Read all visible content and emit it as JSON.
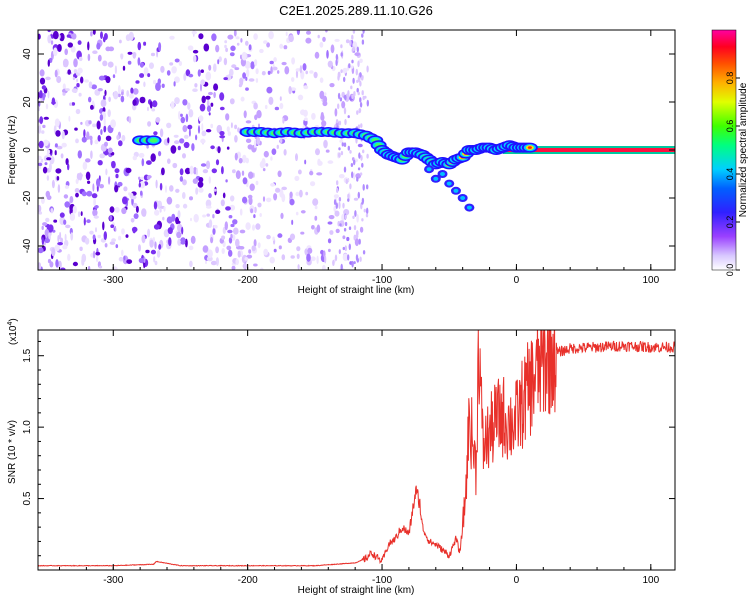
{
  "title": "C2E1.2025.289.11.10.G26",
  "chart_data": [
    {
      "type": "heatmap",
      "panel": "top",
      "title": "C2E1.2025.289.11.10.G26",
      "xlabel": "Height of straight line (km)",
      "ylabel": "Frequency (Hz)",
      "xlim": [
        -356,
        118
      ],
      "ylim": [
        -50,
        50
      ],
      "xticks": [
        -300,
        -200,
        -100,
        0,
        100
      ],
      "xtick_labels": [
        "-300",
        "-200",
        "-100",
        "0",
        "100"
      ],
      "yticks": [
        -40,
        -20,
        0,
        20,
        40
      ],
      "ytick_labels": [
        "-40",
        "-20",
        "0",
        "20",
        "40"
      ],
      "colorbar": {
        "label": "Normalized spectral amplitude",
        "range": [
          0,
          1
        ],
        "ticks": [
          0.0,
          0.2,
          0.4,
          0.6,
          0.8
        ],
        "tick_labels": [
          "0.0",
          "0.2",
          "0.4",
          "0.6",
          "0.8"
        ],
        "colors": [
          "#ffffff",
          "#c0a0ff",
          "#6a00d8",
          "#0000ff",
          "#00c8ff",
          "#00ff40",
          "#ffff00",
          "#ff8000",
          "#ff0000",
          "#ff00c0"
        ]
      },
      "noise_region": [
        -356,
        -115
      ],
      "sparse_noise_region": [
        -135,
        -110
      ],
      "trace": {
        "x": [
          -280,
          -270,
          -200,
          -190,
          -180,
          -170,
          -160,
          -150,
          -140,
          -130,
          -120,
          -112,
          -105,
          -100,
          -95,
          -90,
          -85,
          -80,
          -75,
          -70,
          -65,
          -60,
          -55,
          -50,
          -45,
          -40,
          -35,
          -30,
          -25,
          -20,
          -15,
          -10,
          -5,
          0,
          5,
          10
        ],
        "y": [
          4,
          4,
          7.5,
          7.5,
          7,
          7.5,
          7,
          7.5,
          7.5,
          7,
          7,
          6,
          4,
          0,
          -2,
          -3,
          -4,
          -1,
          -1,
          -2,
          -4,
          -6,
          -5,
          -6,
          -4,
          -3,
          0,
          0,
          1,
          1,
          0,
          1,
          2,
          1,
          1,
          1
        ]
      },
      "side_branch": {
        "x": [
          -65,
          -60,
          -55,
          -50,
          -45,
          -40,
          -35
        ],
        "y": [
          -8,
          -12,
          -10,
          -14,
          -17,
          -20,
          -24
        ]
      },
      "carrier_line": {
        "x": [
          -10,
          118
        ],
        "y": 0
      }
    },
    {
      "type": "line",
      "panel": "bottom",
      "xlabel": "Height of straight line (km)",
      "ylabel": "SNR (10 * v/v)",
      "scale_label_base": "(x10",
      "scale_label_exp": "4",
      "scale_label_end": ")",
      "xlim": [
        -356,
        118
      ],
      "ylim": [
        0,
        1.68
      ],
      "xticks": [
        -300,
        -200,
        -100,
        0,
        100
      ],
      "xtick_labels": [
        "-300",
        "-200",
        "-100",
        "0",
        "100"
      ],
      "yticks": [
        0.5,
        1.0,
        1.5
      ],
      "ytick_labels": [
        "0.5",
        "1.0",
        "1.5"
      ],
      "series": [
        {
          "name": "SNR",
          "color": "#e8302a",
          "x": [
            -356,
            -300,
            -270,
            -268,
            -250,
            -200,
            -150,
            -120,
            -112,
            -108,
            -100,
            -95,
            -90,
            -85,
            -80,
            -75,
            -72,
            -70,
            -65,
            -60,
            -55,
            -50,
            -45,
            -42,
            -38,
            -35,
            -30,
            -28,
            -25,
            -20,
            -15,
            -10,
            -5,
            0,
            5,
            10,
            15,
            20,
            25,
            30,
            40,
            60,
            80,
            100,
            118
          ],
          "y": [
            0.03,
            0.03,
            0.04,
            0.06,
            0.03,
            0.03,
            0.03,
            0.05,
            0.08,
            0.12,
            0.06,
            0.18,
            0.22,
            0.3,
            0.25,
            0.55,
            0.48,
            0.3,
            0.2,
            0.18,
            0.14,
            0.1,
            0.22,
            0.12,
            0.5,
            1.08,
            0.7,
            1.65,
            0.85,
            0.95,
            1.05,
            1.08,
            1.02,
            1.05,
            1.18,
            1.28,
            1.38,
            1.45,
            1.5,
            1.52,
            1.55,
            1.56,
            1.57,
            1.56,
            1.56
          ]
        }
      ]
    }
  ]
}
